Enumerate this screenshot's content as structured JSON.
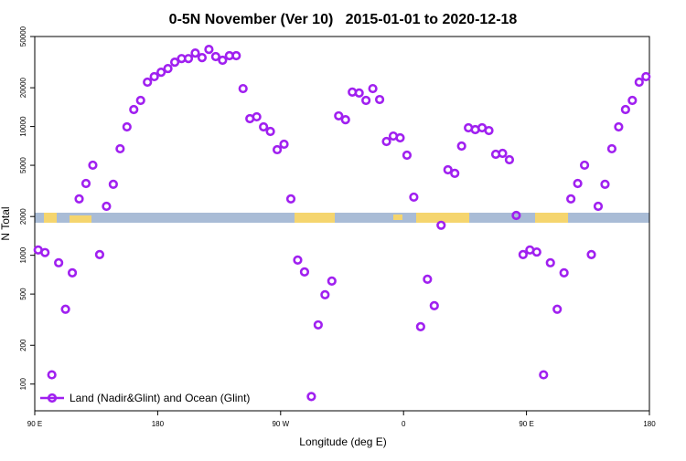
{
  "chart_data": {
    "type": "scatter",
    "title": "0-5N November (Ver 10)   2015-01-01 to 2020-12-18",
    "x_label": "Longitude (deg E)",
    "y_label": "N Total",
    "log_y": true,
    "grid": false,
    "legend_position": "lower-left",
    "xlim": [
      90,
      540
    ],
    "xticks": [
      {
        "value": 90,
        "label": "90 E"
      },
      {
        "value": 180,
        "label": "180"
      },
      {
        "value": 270,
        "label": "90 W"
      },
      {
        "value": 360,
        "label": "0"
      },
      {
        "value": 450,
        "label": "90 E"
      },
      {
        "value": 540,
        "label": "180"
      }
    ],
    "ylim": [
      62,
      50000
    ],
    "yticks": [
      100,
      200,
      500,
      1000,
      2000,
      5000,
      10000,
      20000,
      50000
    ],
    "x": [
      92.5,
      97.5,
      102.5,
      107.5,
      112.5,
      117.5,
      122.5,
      127.5,
      132.5,
      137.5,
      142.5,
      147.5,
      152.5,
      157.5,
      162.5,
      167.5,
      172.5,
      177.5,
      182.5,
      187.5,
      192.5,
      197.5,
      202.5,
      207.5,
      212.5,
      217.5,
      222.5,
      227.5,
      232.5,
      237.5,
      242.5,
      247.5,
      252.5,
      257.5,
      262.5,
      267.5,
      272.5,
      277.5,
      282.5,
      287.5,
      292.5,
      297.5,
      302.5,
      307.5,
      312.5,
      317.5,
      322.5,
      327.5,
      332.5,
      337.5,
      342.5,
      347.5,
      352.5,
      357.5,
      362.5,
      367.5,
      372.5,
      377.5,
      382.5,
      387.5,
      392.5,
      397.5,
      402.5,
      407.5,
      412.5,
      417.5,
      422.5,
      427.5,
      432.5,
      437.5,
      442.5,
      447.5,
      452.5,
      457.5,
      462.5,
      467.5,
      472.5,
      477.5,
      482.5,
      487.5,
      492.5,
      497.5,
      502.5,
      507.5,
      512.5,
      517.5,
      522.5,
      527.5,
      532.5,
      537.5
    ],
    "series": [
      {
        "name": "Land (Nadir&Glint) and Ocean (Glint)",
        "color": "#a020f0",
        "values": [
          1100,
          1050,
          118,
          875,
          381,
          731,
          2740,
          3610,
          5010,
          1013,
          2400,
          3560,
          6720,
          9940,
          13550,
          15950,
          22100,
          24400,
          26400,
          28200,
          31600,
          33700,
          33700,
          37200,
          34300,
          39700,
          34900,
          32700,
          35500,
          35500,
          19700,
          11500,
          11900,
          9940,
          9160,
          6610,
          7290,
          2740,
          918,
          743,
          80,
          288,
          494,
          631,
          12100,
          11300,
          18500,
          18200,
          15950,
          19700,
          16200,
          7650,
          8430,
          8170,
          5990,
          2830,
          279,
          652,
          406,
          1710,
          4610,
          4330,
          7050,
          9770,
          9460,
          9770,
          9300,
          6090,
          6190,
          5520,
          2040,
          1013,
          1100,
          1060,
          118,
          875,
          381,
          731,
          2740,
          3610,
          5010,
          1013,
          2400,
          3560,
          6720,
          9940,
          13550,
          15950,
          22100,
          24400
        ]
      }
    ]
  }
}
